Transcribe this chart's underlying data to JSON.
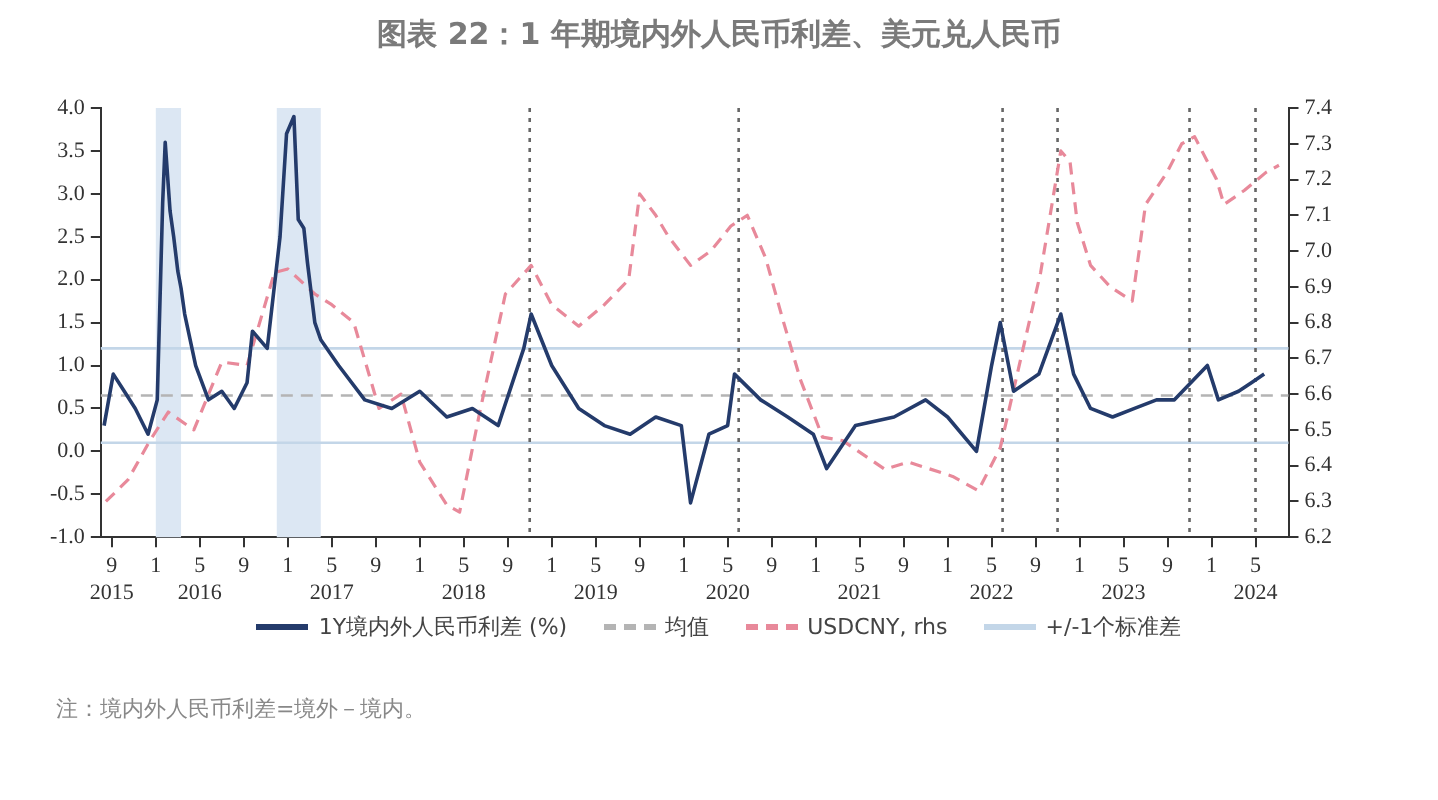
{
  "chart_data": {
    "type": "line",
    "title": "图表 22：1 年期境内外人民币利差、美元兑人民币",
    "marker": "none",
    "legend": "bottom",
    "xlim": [
      "2015-08",
      "2024-08"
    ],
    "xticks": [
      {
        "value": "2015-09",
        "label": "9\n2015"
      },
      {
        "value": "2016-01",
        "label": "1"
      },
      {
        "value": "2016-05",
        "label": "5\n2016"
      },
      {
        "value": "2016-09",
        "label": "9"
      },
      {
        "value": "2017-01",
        "label": "1"
      },
      {
        "value": "2017-05",
        "label": "5\n2017"
      },
      {
        "value": "2017-09",
        "label": "9"
      },
      {
        "value": "2018-01",
        "label": "1"
      },
      {
        "value": "2018-05",
        "label": "5\n2018"
      },
      {
        "value": "2018-09",
        "label": "9"
      },
      {
        "value": "2019-01",
        "label": "1"
      },
      {
        "value": "2019-05",
        "label": "5\n2019"
      },
      {
        "value": "2019-09",
        "label": "9"
      },
      {
        "value": "2020-01",
        "label": "1"
      },
      {
        "value": "2020-05",
        "label": "5\n2020"
      },
      {
        "value": "2020-09",
        "label": "9"
      },
      {
        "value": "2021-01",
        "label": "1"
      },
      {
        "value": "2021-05",
        "label": "5\n2021"
      },
      {
        "value": "2021-09",
        "label": "9"
      },
      {
        "value": "2022-01",
        "label": "1"
      },
      {
        "value": "2022-05",
        "label": "5\n2022"
      },
      {
        "value": "2022-09",
        "label": "9"
      },
      {
        "value": "2023-01",
        "label": "1"
      },
      {
        "value": "2023-05",
        "label": "5\n2023"
      },
      {
        "value": "2023-09",
        "label": "9"
      },
      {
        "value": "2024-01",
        "label": "1"
      },
      {
        "value": "2024-05",
        "label": "5\n2024"
      }
    ],
    "ylim": [
      -1.0,
      4.0
    ],
    "yticks": [
      {
        "value": -1,
        "label": "-1.0"
      },
      {
        "value": -0.5,
        "label": "-0.5"
      },
      {
        "value": 0,
        "label": "0.0"
      },
      {
        "value": 0.5,
        "label": "0.5"
      },
      {
        "value": 1,
        "label": "1.0"
      },
      {
        "value": 1.5,
        "label": "1.5"
      },
      {
        "value": 2,
        "label": "2.0"
      },
      {
        "value": 2.5,
        "label": "2.5"
      },
      {
        "value": 3,
        "label": "3.0"
      },
      {
        "value": 3.5,
        "label": "3.5"
      },
      {
        "value": 4,
        "label": "4.0"
      }
    ],
    "y2lim": [
      6.2,
      7.4
    ],
    "y2ticks": [
      {
        "value": 6.2,
        "label": "6.2"
      },
      {
        "value": 6.3,
        "label": "6.3"
      },
      {
        "value": 6.4,
        "label": "6.4"
      },
      {
        "value": 6.5,
        "label": "6.5"
      },
      {
        "value": 6.6,
        "label": "6.6"
      },
      {
        "value": 6.7,
        "label": "6.7"
      },
      {
        "value": 6.8,
        "label": "6.8"
      },
      {
        "value": 6.9,
        "label": "6.9"
      },
      {
        "value": 7.0,
        "label": "7.0"
      },
      {
        "value": 7.1,
        "label": "7.1"
      },
      {
        "value": 7.2,
        "label": "7.2"
      },
      {
        "value": 7.3,
        "label": "7.3"
      },
      {
        "value": 7.4,
        "label": "7.4"
      }
    ],
    "series": [
      {
        "name": "1Y境内外人民币利差 (%)",
        "color": "#243b6b",
        "line_style": "solid",
        "x": [
          "2015-08-10",
          "2015-09-05",
          "2015-10-05",
          "2015-11-05",
          "2015-12-10",
          "2016-01-05",
          "2016-01-20",
          "2016-01-27",
          "2016-02-10",
          "2016-02-20",
          "2016-03-01",
          "2016-03-10",
          "2016-03-20",
          "2016-04-20",
          "2016-05-25",
          "2016-07-01",
          "2016-08-05",
          "2016-09-10",
          "2016-09-25",
          "2016-11-05",
          "2016-12-10",
          "2016-12-28",
          "2017-01-18",
          "2017-01-30",
          "2017-02-15",
          "2017-02-25",
          "2017-03-15",
          "2017-04-01",
          "2017-05-20",
          "2017-08-01",
          "2017-10-15",
          "2018-01-01",
          "2018-03-15",
          "2018-05-25",
          "2018-08-05",
          "2018-10-15",
          "2018-11-05",
          "2019-01-01",
          "2019-03-15",
          "2019-05-25",
          "2019-08-05",
          "2019-10-15",
          "2019-12-25",
          "2020-01-20",
          "2020-03-10",
          "2020-05-01",
          "2020-05-20",
          "2020-08-01",
          "2020-10-15",
          "2020-12-25",
          "2021-02-01",
          "2021-04-20",
          "2021-08-05",
          "2021-11-01",
          "2022-01-01",
          "2022-03-20",
          "2022-05-01",
          "2022-05-25",
          "2022-07-01",
          "2022-09-10",
          "2022-11-10",
          "2022-12-15",
          "2023-02-01",
          "2023-04-01",
          "2023-06-01",
          "2023-08-01",
          "2023-09-20",
          "2023-12-20",
          "2024-01-20",
          "2024-03-15",
          "2024-04-20",
          "2024-05-25"
        ],
        "values": [
          0.3,
          0.9,
          0.7,
          0.5,
          0.2,
          0.6,
          2.9,
          3.6,
          2.8,
          2.5,
          2.1,
          1.9,
          1.6,
          1.0,
          0.6,
          0.7,
          0.5,
          0.8,
          1.4,
          1.2,
          2.5,
          3.7,
          3.9,
          2.7,
          2.6,
          2.2,
          1.5,
          1.3,
          1.0,
          0.6,
          0.5,
          0.7,
          0.4,
          0.5,
          0.3,
          1.2,
          1.6,
          1.0,
          0.5,
          0.3,
          0.2,
          0.4,
          0.3,
          -0.6,
          0.2,
          0.3,
          0.9,
          0.6,
          0.4,
          0.2,
          -0.2,
          0.3,
          0.4,
          0.6,
          0.4,
          0.0,
          1.0,
          1.5,
          0.7,
          0.9,
          1.6,
          0.9,
          0.5,
          0.4,
          0.5,
          0.6,
          0.6,
          1.0,
          0.6,
          0.7,
          0.8,
          0.9
        ]
      },
      {
        "name": "USDCNY, rhs",
        "color": "#e8899a",
        "line_style": "dashed",
        "axis": "y2",
        "x": [
          "2015-08-15",
          "2015-10-15",
          "2015-12-15",
          "2016-02-05",
          "2016-04-15",
          "2016-07-01",
          "2016-09-10",
          "2016-11-25",
          "2017-01-01",
          "2017-03-15",
          "2017-05-01",
          "2017-07-01",
          "2017-09-10",
          "2017-11-10",
          "2018-01-01",
          "2018-03-15",
          "2018-04-20",
          "2018-06-15",
          "2018-08-25",
          "2018-11-05",
          "2019-01-01",
          "2019-03-15",
          "2019-05-25",
          "2019-08-01",
          "2019-09-01",
          "2019-10-15",
          "2019-11-20",
          "2020-01-20",
          "2020-03-15",
          "2020-05-10",
          "2020-06-25",
          "2020-08-15",
          "2020-10-01",
          "2020-11-20",
          "2021-01-20",
          "2021-03-15",
          "2021-07-10",
          "2021-09-15",
          "2022-01-15",
          "2022-03-25",
          "2022-05-25",
          "2022-09-15",
          "2022-11-10",
          "2022-12-05",
          "2022-12-25",
          "2023-02-01",
          "2023-03-25",
          "2023-05-25",
          "2023-07-01",
          "2023-08-30",
          "2023-10-10",
          "2023-11-15",
          "2024-01-15",
          "2024-02-05",
          "2024-04-01",
          "2024-05-30",
          "2024-07-05"
        ],
        "values": [
          6.3,
          6.36,
          6.47,
          6.55,
          6.5,
          6.69,
          6.68,
          6.94,
          6.95,
          6.88,
          6.85,
          6.8,
          6.56,
          6.6,
          6.41,
          6.29,
          6.27,
          6.55,
          6.88,
          6.96,
          6.85,
          6.79,
          6.85,
          6.92,
          7.16,
          7.1,
          7.04,
          6.96,
          7.0,
          7.07,
          7.1,
          6.98,
          6.81,
          6.64,
          6.48,
          6.47,
          6.39,
          6.41,
          6.37,
          6.33,
          6.45,
          6.94,
          7.28,
          7.25,
          7.08,
          6.96,
          6.9,
          6.86,
          7.13,
          7.22,
          7.3,
          7.32,
          7.2,
          7.13,
          7.17,
          7.22,
          7.24
        ]
      }
    ],
    "ref_lines": [
      {
        "axis": "y",
        "value": 0.65,
        "label": "均值",
        "color": "#b4b4b4",
        "line_style": "dashed"
      },
      {
        "axis": "y",
        "value": 1.2,
        "label": "+/-1个标准差",
        "color": "#c3d6e8",
        "line_style": "solid"
      },
      {
        "axis": "y",
        "value": 0.1,
        "color": "#c3d6e8",
        "line_style": "solid"
      },
      {
        "axis": "x",
        "value": "2018-11",
        "color": "#666666",
        "line_style": "dotted"
      },
      {
        "axis": "x",
        "value": "2020-06",
        "color": "#666666",
        "line_style": "dotted"
      },
      {
        "axis": "x",
        "value": "2022-06",
        "color": "#666666",
        "line_style": "dotted"
      },
      {
        "axis": "x",
        "value": "2022-11",
        "color": "#666666",
        "line_style": "dotted"
      },
      {
        "axis": "x",
        "value": "2023-11",
        "color": "#666666",
        "line_style": "dotted"
      },
      {
        "axis": "x",
        "value": "2024-05",
        "color": "#666666",
        "line_style": "dotted"
      }
    ],
    "bands": [
      {
        "axis": "x",
        "from": "2016-01",
        "to": "2016-03-10",
        "color": "#dce7f3"
      },
      {
        "axis": "x",
        "from": "2016-12",
        "to": "2017-04",
        "color": "#dce7f3"
      }
    ],
    "annotations": [
      "注：境内外人民币利差=境外－境内。"
    ]
  }
}
